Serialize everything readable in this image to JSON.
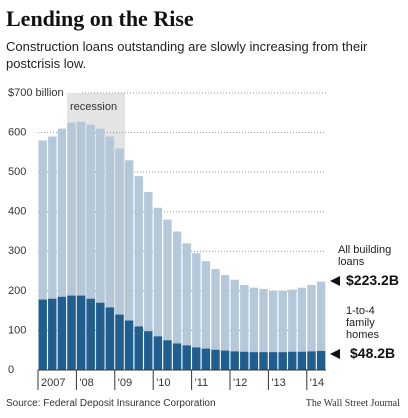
{
  "chart_data": {
    "type": "bar",
    "title": "Lending on the Rise",
    "subtitle": "Construction loans outstanding are slowly increasing from their postcrisis low.",
    "annotation": "recession",
    "source": "Source: Federal Deposit Insurance Corporation",
    "credit": "The Wall Street Journal",
    "categories": [
      "2007",
      null,
      null,
      null,
      "'08",
      null,
      null,
      null,
      "'09",
      null,
      null,
      null,
      "'10",
      null,
      null,
      null,
      "'11",
      null,
      null,
      null,
      "'12",
      null,
      null,
      null,
      "'13",
      null,
      null,
      null,
      "'14",
      null
    ],
    "series": [
      {
        "name": "All building loans",
        "color": "#b5c8da",
        "values": [
          580,
          590,
          610,
          625,
          627,
          620,
          610,
          590,
          560,
          530,
          490,
          450,
          410,
          380,
          350,
          320,
          295,
          275,
          255,
          240,
          228,
          215,
          208,
          205,
          200,
          200,
          203,
          208,
          215,
          223.2
        ],
        "value_labels": [
          null,
          null,
          null,
          null,
          null,
          null,
          null,
          null,
          null,
          null,
          null,
          null,
          null,
          null,
          null,
          null,
          null,
          null,
          null,
          null,
          null,
          null,
          null,
          null,
          null,
          null,
          null,
          null,
          null,
          "$223.2B"
        ]
      },
      {
        "name": "1-to-4 family homes",
        "color": "#1f5e8e",
        "values": [
          178,
          180,
          185,
          188,
          188,
          180,
          170,
          158,
          140,
          125,
          110,
          98,
          85,
          75,
          67,
          62,
          57,
          54,
          51,
          49,
          47,
          46,
          45,
          45,
          45,
          45,
          46,
          46,
          47,
          48.2
        ],
        "value_labels": [
          null,
          null,
          null,
          null,
          null,
          null,
          null,
          null,
          null,
          null,
          null,
          null,
          null,
          null,
          null,
          null,
          null,
          null,
          null,
          null,
          null,
          null,
          null,
          null,
          null,
          null,
          null,
          null,
          null,
          "$48.2B"
        ]
      }
    ],
    "ylim": [
      0,
      700
    ],
    "yticks": [
      0,
      100,
      200,
      300,
      400,
      500,
      600,
      {
        "value": 700,
        "label": "$700 billion"
      }
    ],
    "grid": true
  }
}
